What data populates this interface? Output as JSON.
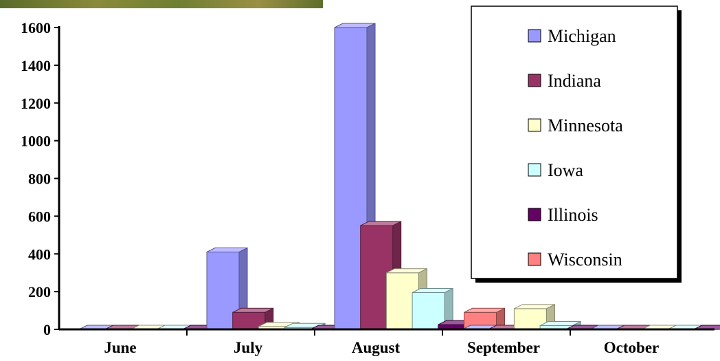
{
  "chart_data": {
    "type": "bar",
    "categories": [
      "June",
      "July",
      "August",
      "September",
      "October"
    ],
    "series": [
      {
        "name": "Michigan",
        "color": "#9999ff",
        "values": [
          0,
          410,
          1600,
          0,
          0
        ]
      },
      {
        "name": "Indiana",
        "color": "#993366",
        "values": [
          0,
          90,
          550,
          0,
          0
        ]
      },
      {
        "name": "Minnesota",
        "color": "#ffffcc",
        "values": [
          0,
          15,
          300,
          110,
          0
        ]
      },
      {
        "name": "Iowa",
        "color": "#ccffff",
        "values": [
          0,
          10,
          195,
          20,
          0
        ]
      },
      {
        "name": "Illinois",
        "color": "#660066",
        "values": [
          0,
          0,
          25,
          0,
          0
        ]
      },
      {
        "name": "Wisconsin",
        "color": "#ff8080",
        "values": [
          0,
          55,
          90,
          0,
          0
        ]
      }
    ],
    "y_ticks": [
      "0",
      "200",
      "400",
      "600",
      "800",
      "1000",
      "1200",
      "1400",
      "1600"
    ],
    "ylim": [
      0,
      1600
    ],
    "legend_position": "top-right",
    "grid": false,
    "title": "",
    "xlabel": "",
    "ylabel": ""
  }
}
